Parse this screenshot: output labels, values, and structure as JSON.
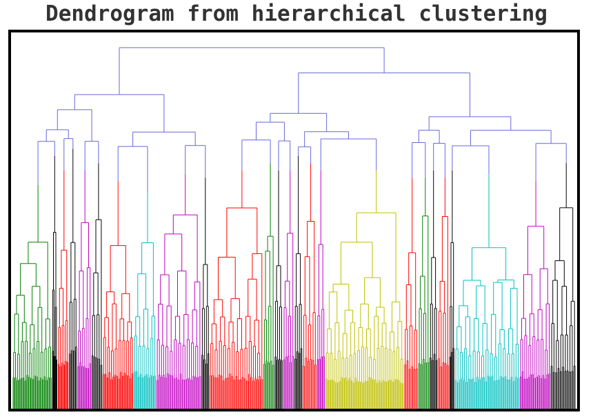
{
  "title": "Dendrogram from hierarchical clustering",
  "chart_data": {
    "type": "dendrogram",
    "title": "Dendrogram from hierarchical clustering",
    "xlabel": "",
    "ylabel": "",
    "grid": false,
    "legend": "none",
    "link_color": "#6666dd",
    "colors": {
      "green": "#008000",
      "red": "#ff0000",
      "magenta": "#bf00bf",
      "cyan": "#00bfbf",
      "olive": "#bfbf00",
      "black": "#000000",
      "blue": "#6666dd"
    },
    "root_height": 100,
    "top_merges": [
      {
        "height": 100,
        "children": [
          "left-group",
          "right-group"
        ]
      },
      {
        "height": 93,
        "children": [
          "center-group",
          "far-right-group"
        ]
      },
      {
        "height": 87,
        "children": [
          "left-a",
          "left-b"
        ]
      }
    ],
    "clusters": [
      {
        "color": "green",
        "span": [
          0.0,
          0.07
        ],
        "top_height": 62,
        "leaf_count": 40
      },
      {
        "color": "black",
        "span": [
          0.07,
          0.08
        ],
        "top_height": 70,
        "leaf_count": 8
      },
      {
        "color": "red",
        "span": [
          0.08,
          0.1
        ],
        "top_height": 66,
        "leaf_count": 12
      },
      {
        "color": "black",
        "span": [
          0.1,
          0.115
        ],
        "top_height": 72,
        "leaf_count": 8
      },
      {
        "color": "magenta",
        "span": [
          0.115,
          0.14
        ],
        "top_height": 66,
        "leaf_count": 14
      },
      {
        "color": "black",
        "span": [
          0.14,
          0.16
        ],
        "top_height": 68,
        "leaf_count": 10
      },
      {
        "color": "red",
        "span": [
          0.16,
          0.215
        ],
        "top_height": 63,
        "leaf_count": 32
      },
      {
        "color": "cyan",
        "span": [
          0.215,
          0.255
        ],
        "top_height": 60,
        "leaf_count": 22
      },
      {
        "color": "magenta",
        "span": [
          0.255,
          0.335
        ],
        "top_height": 65,
        "leaf_count": 42
      },
      {
        "color": "black",
        "span": [
          0.335,
          0.35
        ],
        "top_height": 64,
        "leaf_count": 8
      },
      {
        "color": "red",
        "span": [
          0.35,
          0.445
        ],
        "top_height": 66,
        "leaf_count": 50
      },
      {
        "color": "green",
        "span": [
          0.445,
          0.465
        ],
        "top_height": 68,
        "leaf_count": 10
      },
      {
        "color": "black",
        "span": [
          0.465,
          0.48
        ],
        "top_height": 66,
        "leaf_count": 8
      },
      {
        "color": "magenta",
        "span": [
          0.48,
          0.5
        ],
        "top_height": 66,
        "leaf_count": 10
      },
      {
        "color": "black",
        "span": [
          0.5,
          0.515
        ],
        "top_height": 70,
        "leaf_count": 8
      },
      {
        "color": "red",
        "span": [
          0.515,
          0.54
        ],
        "top_height": 68,
        "leaf_count": 12
      },
      {
        "color": "magenta",
        "span": [
          0.54,
          0.555
        ],
        "top_height": 66,
        "leaf_count": 8
      },
      {
        "color": "olive",
        "span": [
          0.555,
          0.695
        ],
        "top_height": 66,
        "leaf_count": 80
      },
      {
        "color": "red",
        "span": [
          0.695,
          0.72
        ],
        "top_height": 64,
        "leaf_count": 12
      },
      {
        "color": "green",
        "span": [
          0.72,
          0.74
        ],
        "top_height": 64,
        "leaf_count": 10
      },
      {
        "color": "black",
        "span": [
          0.74,
          0.755
        ],
        "top_height": 66,
        "leaf_count": 8
      },
      {
        "color": "red",
        "span": [
          0.755,
          0.775
        ],
        "top_height": 64,
        "leaf_count": 10
      },
      {
        "color": "black",
        "span": [
          0.775,
          0.785
        ],
        "top_height": 66,
        "leaf_count": 6
      },
      {
        "color": "cyan",
        "span": [
          0.785,
          0.9
        ],
        "top_height": 65,
        "leaf_count": 60
      },
      {
        "color": "magenta",
        "span": [
          0.9,
          0.955
        ],
        "top_height": 63,
        "leaf_count": 30
      },
      {
        "color": "black",
        "span": [
          0.955,
          1.0
        ],
        "top_height": 68,
        "leaf_count": 22
      }
    ]
  }
}
